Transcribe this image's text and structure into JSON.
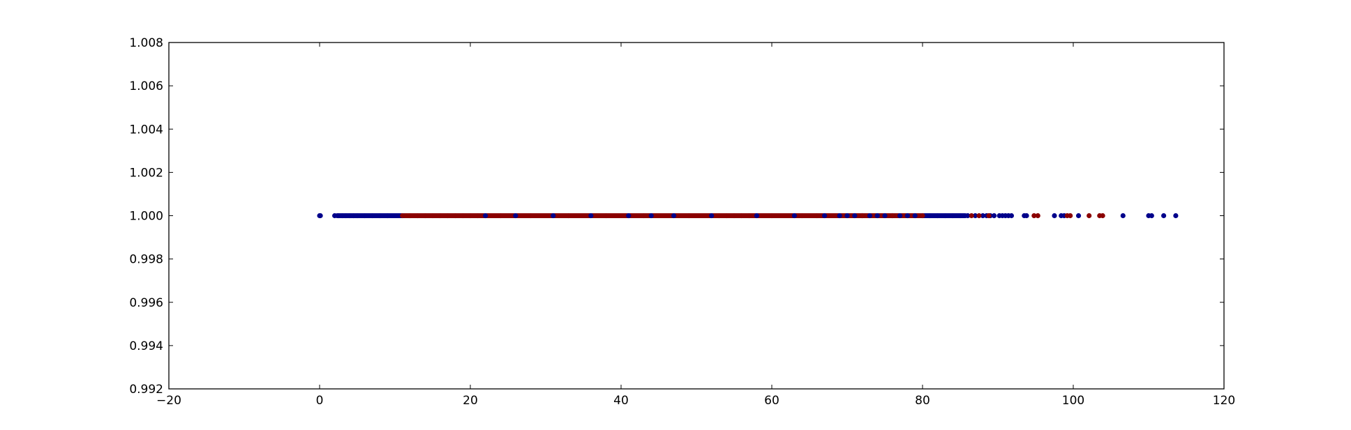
{
  "chart_data": {
    "type": "scatter",
    "title": "",
    "xlabel": "",
    "ylabel": "",
    "xlim": [
      -20,
      120
    ],
    "ylim": [
      0.992,
      1.008
    ],
    "x_ticks": [
      -20,
      0,
      20,
      40,
      60,
      80,
      100,
      120
    ],
    "x_tick_labels": [
      "−20",
      "0",
      "20",
      "40",
      "60",
      "80",
      "100",
      "120"
    ],
    "y_ticks": [
      1.008,
      1.006,
      1.004,
      1.002,
      1.0,
      0.998,
      0.996,
      0.994,
      0.992
    ],
    "y_tick_labels": [
      "1.008",
      "1.006",
      "1.004",
      "1.002",
      "1.000",
      "0.998",
      "0.996",
      "0.994",
      "0.992"
    ],
    "grid": false,
    "legend": "none",
    "series": [
      {
        "color": "#00008b",
        "dense_range": [
          2,
          86
        ],
        "x": [
          0,
          0.1,
          2,
          2.5,
          3,
          3.5,
          4,
          4.5,
          5,
          6,
          7,
          8,
          9,
          22,
          26,
          31,
          36,
          41,
          44,
          47,
          52,
          58,
          63,
          67,
          69,
          70,
          71,
          72,
          73,
          74,
          75,
          76,
          77,
          78,
          79,
          80,
          81,
          82,
          83,
          84,
          85,
          86,
          87,
          88,
          88.5,
          89,
          89.5,
          90.2,
          90.6,
          91,
          91.4,
          91.8,
          93.5,
          93.8,
          97.5,
          98.4,
          98.8,
          100.7,
          106.6,
          110,
          110.4,
          112,
          113.6
        ],
        "y": [
          1.0,
          1.0,
          1.0,
          1.0,
          1.0,
          1.0,
          1.0,
          1.0,
          1.0,
          1.0,
          1.0,
          1.0,
          1.0,
          1.0,
          1.0,
          1.0,
          1.0,
          1.0,
          1.0,
          1.0,
          1.0,
          1.0,
          1.0,
          1.0,
          1.0,
          1.0,
          1.0,
          1.0,
          1.0,
          1.0,
          1.0,
          1.0,
          1.0,
          1.0,
          1.0,
          1.0,
          1.0,
          1.0,
          1.0,
          1.0,
          1.0,
          1.0,
          1.0,
          1.0,
          1.0,
          1.0,
          1.0,
          1.0,
          1.0,
          1.0,
          1.0,
          1.0,
          1.0,
          1.0,
          1.0,
          1.0,
          1.0,
          1.0,
          1.0,
          1.0,
          1.0,
          1.0,
          1.0
        ]
      },
      {
        "color": "#8b0000",
        "dense_range": [
          11,
          80
        ],
        "x": [
          11,
          12,
          13,
          14,
          15,
          16,
          17,
          18,
          19,
          20,
          21,
          24,
          28,
          33,
          38,
          43,
          49,
          53,
          54,
          55,
          56,
          57,
          60,
          64,
          66,
          72,
          76,
          80,
          86.5,
          87.5,
          88.8,
          94.8,
          95.3,
          99.2,
          99.6,
          102.1,
          103.5,
          103.9
        ],
        "y": [
          1.0,
          1.0,
          1.0,
          1.0,
          1.0,
          1.0,
          1.0,
          1.0,
          1.0,
          1.0,
          1.0,
          1.0,
          1.0,
          1.0,
          1.0,
          1.0,
          1.0,
          1.0,
          1.0,
          1.0,
          1.0,
          1.0,
          1.0,
          1.0,
          1.0,
          1.0,
          1.0,
          1.0,
          1.0,
          1.0,
          1.0,
          1.0,
          1.0,
          1.0,
          1.0,
          1.0,
          1.0,
          1.0
        ]
      }
    ]
  }
}
